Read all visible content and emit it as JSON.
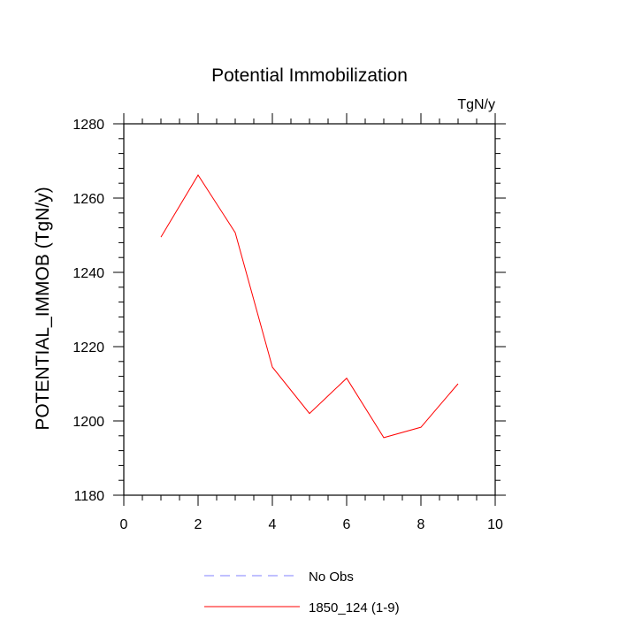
{
  "chart_data": {
    "type": "line",
    "title": "Potential Immobilization",
    "units_label": "TgN/y",
    "ylabel": "POTENTIAL_IMMOB  (TgN/y)",
    "xlabel": "",
    "xlim": [
      0,
      10
    ],
    "ylim": [
      1180,
      1280
    ],
    "x_ticks": [
      0,
      2,
      4,
      6,
      8,
      10
    ],
    "y_ticks": [
      1180,
      1200,
      1220,
      1240,
      1260,
      1280
    ],
    "x_tick_labels": [
      "0",
      "2",
      "4",
      "6",
      "8",
      "10"
    ],
    "y_tick_labels": [
      "1180",
      "1200",
      "1220",
      "1240",
      "1260",
      "1280"
    ],
    "grid": false,
    "legend_position": "bottom",
    "series": [
      {
        "name": "1850_124 (1-9)",
        "color": "#ff0000",
        "style": "solid",
        "x": [
          1,
          2,
          3,
          4,
          5,
          6,
          7,
          8,
          9
        ],
        "y": [
          1249.5,
          1266.2,
          1250.7,
          1214.5,
          1202.0,
          1211.5,
          1195.5,
          1198.3,
          1210.0
        ]
      }
    ],
    "legend": [
      {
        "label": "No Obs",
        "color": "#8080ff",
        "style": "dashed"
      },
      {
        "label": "1850_124 (1-9)",
        "color": "#ff0000",
        "style": "solid"
      }
    ]
  }
}
